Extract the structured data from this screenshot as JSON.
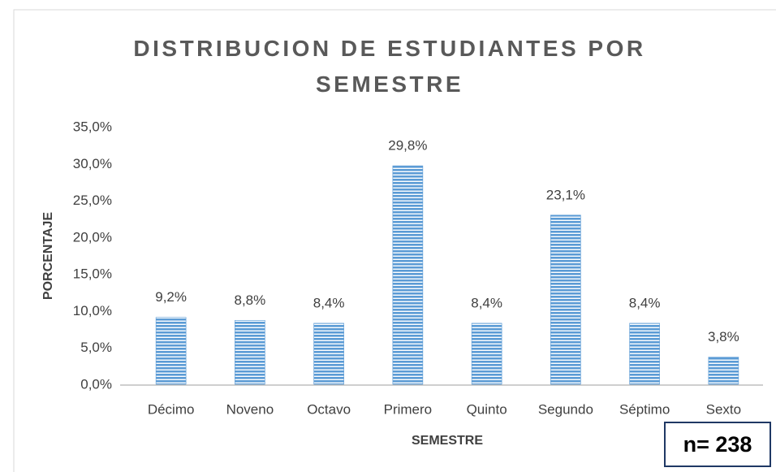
{
  "chart_data": {
    "type": "bar",
    "title": "DISTRIBUCION DE ESTUDIANTES POR SEMESTRE",
    "x_label": "SEMESTRE",
    "y_label": "PORCENTAJE",
    "annotation": "n= 238",
    "categories": [
      "Décimo",
      "Noveno",
      "Octavo",
      "Primero",
      "Quinto",
      "Segundo",
      "Séptimo",
      "Sexto"
    ],
    "values": [
      9.2,
      8.8,
      8.4,
      29.8,
      8.4,
      23.1,
      8.4,
      3.8
    ],
    "value_labels": [
      "9,2%",
      "8,8%",
      "8,4%",
      "29,8%",
      "8,4%",
      "23,1%",
      "8,4%",
      "3,8%"
    ],
    "color": "#5b9bd5",
    "ylim": [
      0,
      35
    ],
    "yticks": [
      {
        "value": 0,
        "label": "0,0%"
      },
      {
        "value": 5,
        "label": "5,0%"
      },
      {
        "value": 10,
        "label": "10,0%"
      },
      {
        "value": 15,
        "label": "15,0%"
      },
      {
        "value": 20,
        "label": "20,0%"
      },
      {
        "value": 25,
        "label": "25,0%"
      },
      {
        "value": 30,
        "label": "30,0%"
      },
      {
        "value": 35,
        "label": "35,0%"
      }
    ],
    "grid": false
  }
}
